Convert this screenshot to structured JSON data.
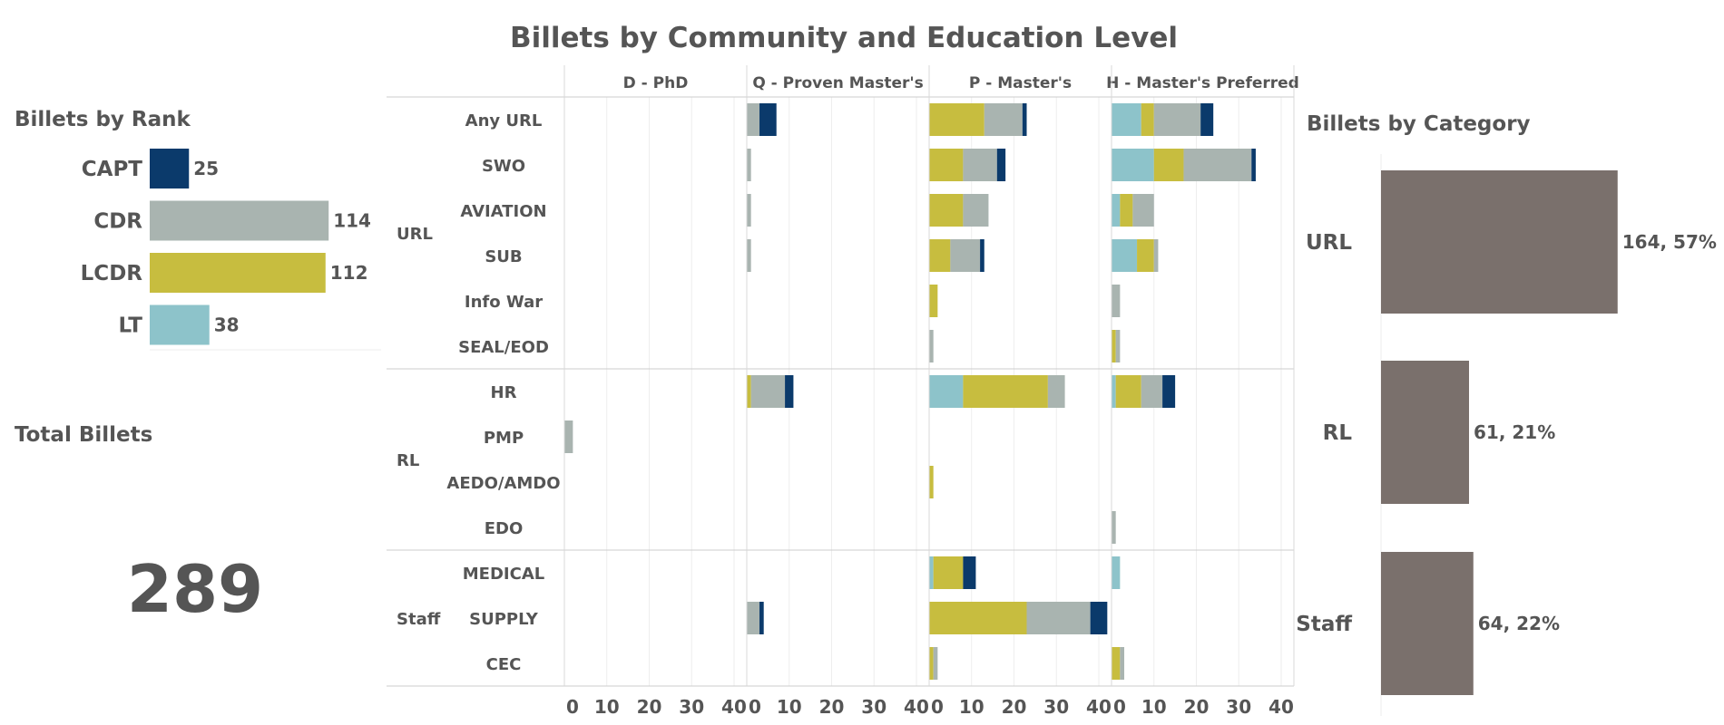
{
  "title": "Billets by Community and Education Level",
  "colors": {
    "CAPT": "#0b3a6b",
    "CDR": "#a9b4b0",
    "LCDR": "#c7bd3f",
    "LT": "#8dc3ca",
    "category": "#7a706c"
  },
  "rank_panel": {
    "title": "Billets by Rank"
  },
  "total_panel": {
    "title": "Total Billets",
    "value": "289"
  },
  "category_panel": {
    "title": "Billets by Category"
  },
  "chart_data": [
    {
      "type": "bar",
      "orientation": "horizontal",
      "title": "Billets by Rank",
      "categories": [
        "CAPT",
        "CDR",
        "LCDR",
        "LT"
      ],
      "values": [
        25,
        114,
        112,
        38
      ],
      "labels": [
        "25",
        "114",
        "112",
        "38"
      ]
    },
    {
      "type": "bar",
      "orientation": "horizontal",
      "stacked": true,
      "title": "Billets by Community and Education Level",
      "stack_order": [
        "LT",
        "LCDR",
        "CDR",
        "CAPT"
      ],
      "columns": [
        "D - PhD",
        "Q - Proven Master's",
        "P - Master's",
        "H - Master's Preferred"
      ],
      "xlim": [
        0,
        43
      ],
      "ticks": [
        0,
        10,
        20,
        30,
        40
      ],
      "groups": [
        {
          "name": "URL",
          "rows": [
            "Any URL",
            "SWO",
            "AVIATION",
            "SUB",
            "Info War",
            "SEAL/EOD"
          ]
        },
        {
          "name": "RL",
          "rows": [
            "HR",
            "PMP",
            "AEDO/AMDO",
            "EDO"
          ]
        },
        {
          "name": "Staff",
          "rows": [
            "MEDICAL",
            "SUPPLY",
            "CEC"
          ]
        }
      ],
      "values": {
        "Any URL": [
          [
            0,
            0,
            0,
            0
          ],
          [
            0,
            0,
            3,
            4
          ],
          [
            0,
            13,
            9,
            1
          ],
          [
            7,
            3,
            11,
            3
          ]
        ],
        "SWO": [
          [
            0,
            0,
            0,
            0
          ],
          [
            0,
            0,
            1,
            0
          ],
          [
            0,
            8,
            8,
            2
          ],
          [
            10,
            7,
            16,
            1
          ]
        ],
        "AVIATION": [
          [
            0,
            0,
            0,
            0
          ],
          [
            0,
            0,
            1,
            0
          ],
          [
            0,
            8,
            6,
            0
          ],
          [
            2,
            3,
            5,
            0
          ]
        ],
        "SUB": [
          [
            0,
            0,
            0,
            0
          ],
          [
            0,
            0,
            1,
            0
          ],
          [
            0,
            5,
            7,
            1
          ],
          [
            6,
            4,
            1,
            0
          ]
        ],
        "Info War": [
          [
            0,
            0,
            0,
            0
          ],
          [
            0,
            0,
            0,
            0
          ],
          [
            0,
            2,
            0,
            0
          ],
          [
            0,
            0,
            2,
            0
          ]
        ],
        "SEAL/EOD": [
          [
            0,
            0,
            0,
            0
          ],
          [
            0,
            0,
            0,
            0
          ],
          [
            0,
            0,
            1,
            0
          ],
          [
            0,
            1,
            1,
            0
          ]
        ],
        "HR": [
          [
            0,
            0,
            0,
            0
          ],
          [
            0,
            1,
            8,
            2
          ],
          [
            8,
            20,
            4,
            0
          ],
          [
            1,
            6,
            5,
            3
          ]
        ],
        "PMP": [
          [
            0,
            0,
            2,
            0
          ],
          [
            0,
            0,
            0,
            0
          ],
          [
            0,
            0,
            0,
            0
          ],
          [
            0,
            0,
            0,
            0
          ]
        ],
        "AEDO/AMDO": [
          [
            0,
            0,
            0,
            0
          ],
          [
            0,
            0,
            0,
            0
          ],
          [
            0,
            1,
            0,
            0
          ],
          [
            0,
            0,
            0,
            0
          ]
        ],
        "EDO": [
          [
            0,
            0,
            0,
            0
          ],
          [
            0,
            0,
            0,
            0
          ],
          [
            0,
            0,
            0,
            0
          ],
          [
            0,
            0,
            1,
            0
          ]
        ],
        "MEDICAL": [
          [
            0,
            0,
            0,
            0
          ],
          [
            0,
            0,
            0,
            0
          ],
          [
            1,
            7,
            0,
            3
          ],
          [
            2,
            0,
            0,
            0
          ]
        ],
        "SUPPLY": [
          [
            0,
            0,
            0,
            0
          ],
          [
            0,
            0,
            3,
            1
          ],
          [
            0,
            23,
            15,
            4
          ],
          [
            0,
            0,
            0,
            0
          ]
        ],
        "CEC": [
          [
            0,
            0,
            0,
            0
          ],
          [
            0,
            0,
            0,
            0
          ],
          [
            0,
            1,
            1,
            0
          ],
          [
            0,
            2,
            1,
            0
          ]
        ]
      }
    },
    {
      "type": "bar",
      "orientation": "horizontal",
      "title": "Billets by Category",
      "categories": [
        "URL",
        "RL",
        "Staff"
      ],
      "values": [
        164,
        61,
        64
      ],
      "labels": [
        "164, 57%",
        "61, 21%",
        "64, 22%"
      ]
    }
  ]
}
